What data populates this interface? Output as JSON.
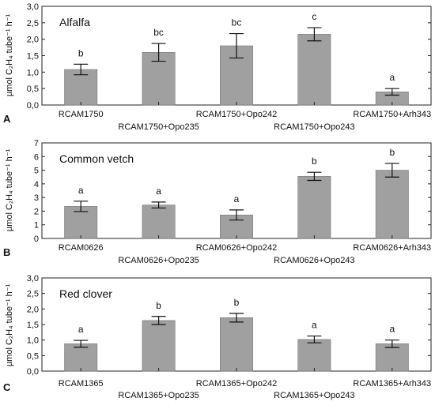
{
  "chart_data": [
    {
      "type": "bar",
      "panel": "A",
      "title": "Alfalfa",
      "ylabel": "µmol C₂H₄ tube⁻¹ h⁻¹",
      "ylim": [
        0,
        3.0
      ],
      "yticks": [
        "0,0",
        "0,5",
        "1,0",
        "1,5",
        "2,0",
        "2,5",
        "3,0"
      ],
      "categories": [
        "RCAM1750",
        "RCAM1750+Opo235",
        "RCAM1750+Opo242",
        "RCAM1750+Opo243",
        "RCAM1750+Arh343"
      ],
      "values": [
        1.08,
        1.6,
        1.8,
        2.15,
        0.4
      ],
      "errors": [
        0.16,
        0.27,
        0.37,
        0.2,
        0.1
      ],
      "letters": [
        "b",
        "bc",
        "bc",
        "c",
        "a"
      ],
      "bar_color": "#a0a0a0"
    },
    {
      "type": "bar",
      "panel": "B",
      "title": "Common vetch",
      "ylabel": "µmol C₂H₄ tube⁻¹ h⁻¹",
      "ylim": [
        0,
        7
      ],
      "yticks": [
        "0",
        "1",
        "2",
        "3",
        "4",
        "5",
        "6",
        "7"
      ],
      "categories": [
        "RCAM0626",
        "RCAM0626+Opo235",
        "RCAM0626+Opo242",
        "RCAM0626+Opo243",
        "RCAM0626+Arh343"
      ],
      "values": [
        2.35,
        2.45,
        1.72,
        4.55,
        5.0
      ],
      "errors": [
        0.38,
        0.22,
        0.37,
        0.3,
        0.5
      ],
      "letters": [
        "a",
        "a",
        "a",
        "b",
        "b"
      ],
      "bar_color": "#a0a0a0"
    },
    {
      "type": "bar",
      "panel": "C",
      "title": "Red clover",
      "ylabel": "µmol C₂H₄ tube⁻¹ h⁻¹",
      "ylim": [
        0,
        3.0
      ],
      "yticks": [
        "0,0",
        "0,5",
        "1,0",
        "1,5",
        "2,0",
        "2,5",
        "3,0"
      ],
      "categories": [
        "RCAM1365",
        "RCAM1365+Opo235",
        "RCAM1365+Opo242",
        "RCAM1365+Opo243",
        "RCAM1365+Arh343"
      ],
      "values": [
        0.88,
        1.63,
        1.72,
        1.02,
        0.88
      ],
      "errors": [
        0.11,
        0.13,
        0.14,
        0.11,
        0.12
      ],
      "letters": [
        "a",
        "b",
        "b",
        "a",
        "a"
      ],
      "bar_color": "#a0a0a0"
    }
  ]
}
